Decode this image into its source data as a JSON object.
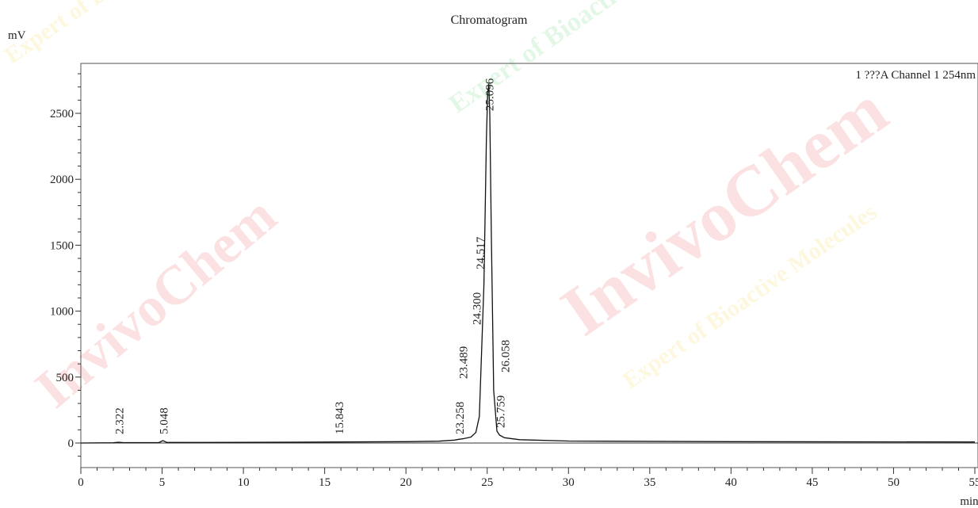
{
  "chart_data": {
    "type": "line",
    "title": "Chromatogram",
    "ylabel": "mV",
    "xlabel": "min",
    "legend": "1 ???A Channel 1 254nm",
    "xlim": [
      0,
      55
    ],
    "ylim": [
      -150,
      2900
    ],
    "x_ticks": [
      0,
      5,
      10,
      15,
      20,
      25,
      30,
      35,
      40,
      45,
      50,
      55
    ],
    "y_ticks": [
      0,
      500,
      1000,
      1500,
      2000,
      2500
    ],
    "series": [
      {
        "x": [
          0,
          2.0,
          2.322,
          2.6,
          4.8,
          5.048,
          5.3,
          10,
          15.843,
          20,
          22,
          23.0,
          23.258,
          23.489,
          24.0,
          24.3,
          24.517,
          24.8,
          24.95,
          25.03,
          25.096,
          25.16,
          25.25,
          25.4,
          25.6,
          25.759,
          26.058,
          27,
          30,
          40,
          55
        ],
        "y": [
          0,
          2,
          6,
          3,
          3,
          18,
          4,
          5,
          8,
          10,
          14,
          22,
          28,
          32,
          45,
          80,
          200,
          1200,
          2300,
          2650,
          2720,
          2500,
          1600,
          400,
          90,
          60,
          40,
          25,
          15,
          10,
          8
        ]
      }
    ],
    "peak_labels": [
      {
        "x": 2.322,
        "text": "2.322"
      },
      {
        "x": 5.048,
        "text": "5.048"
      },
      {
        "x": 15.843,
        "text": "15.843"
      },
      {
        "x": 23.258,
        "text": "23.258"
      },
      {
        "x": 23.489,
        "text": "23.489"
      },
      {
        "x": 24.3,
        "text": "24.300"
      },
      {
        "x": 24.517,
        "text": "24.517"
      },
      {
        "x": 25.096,
        "text": "25.096"
      },
      {
        "x": 25.759,
        "text": "25.759"
      },
      {
        "x": 26.058,
        "text": "26.058"
      }
    ]
  },
  "watermark": {
    "brand": "InvivoChem",
    "tagline_1": "Expert of Bioactive Molecules",
    "colors": [
      "#e8202a",
      "#f2c400",
      "#2ec84a"
    ]
  }
}
